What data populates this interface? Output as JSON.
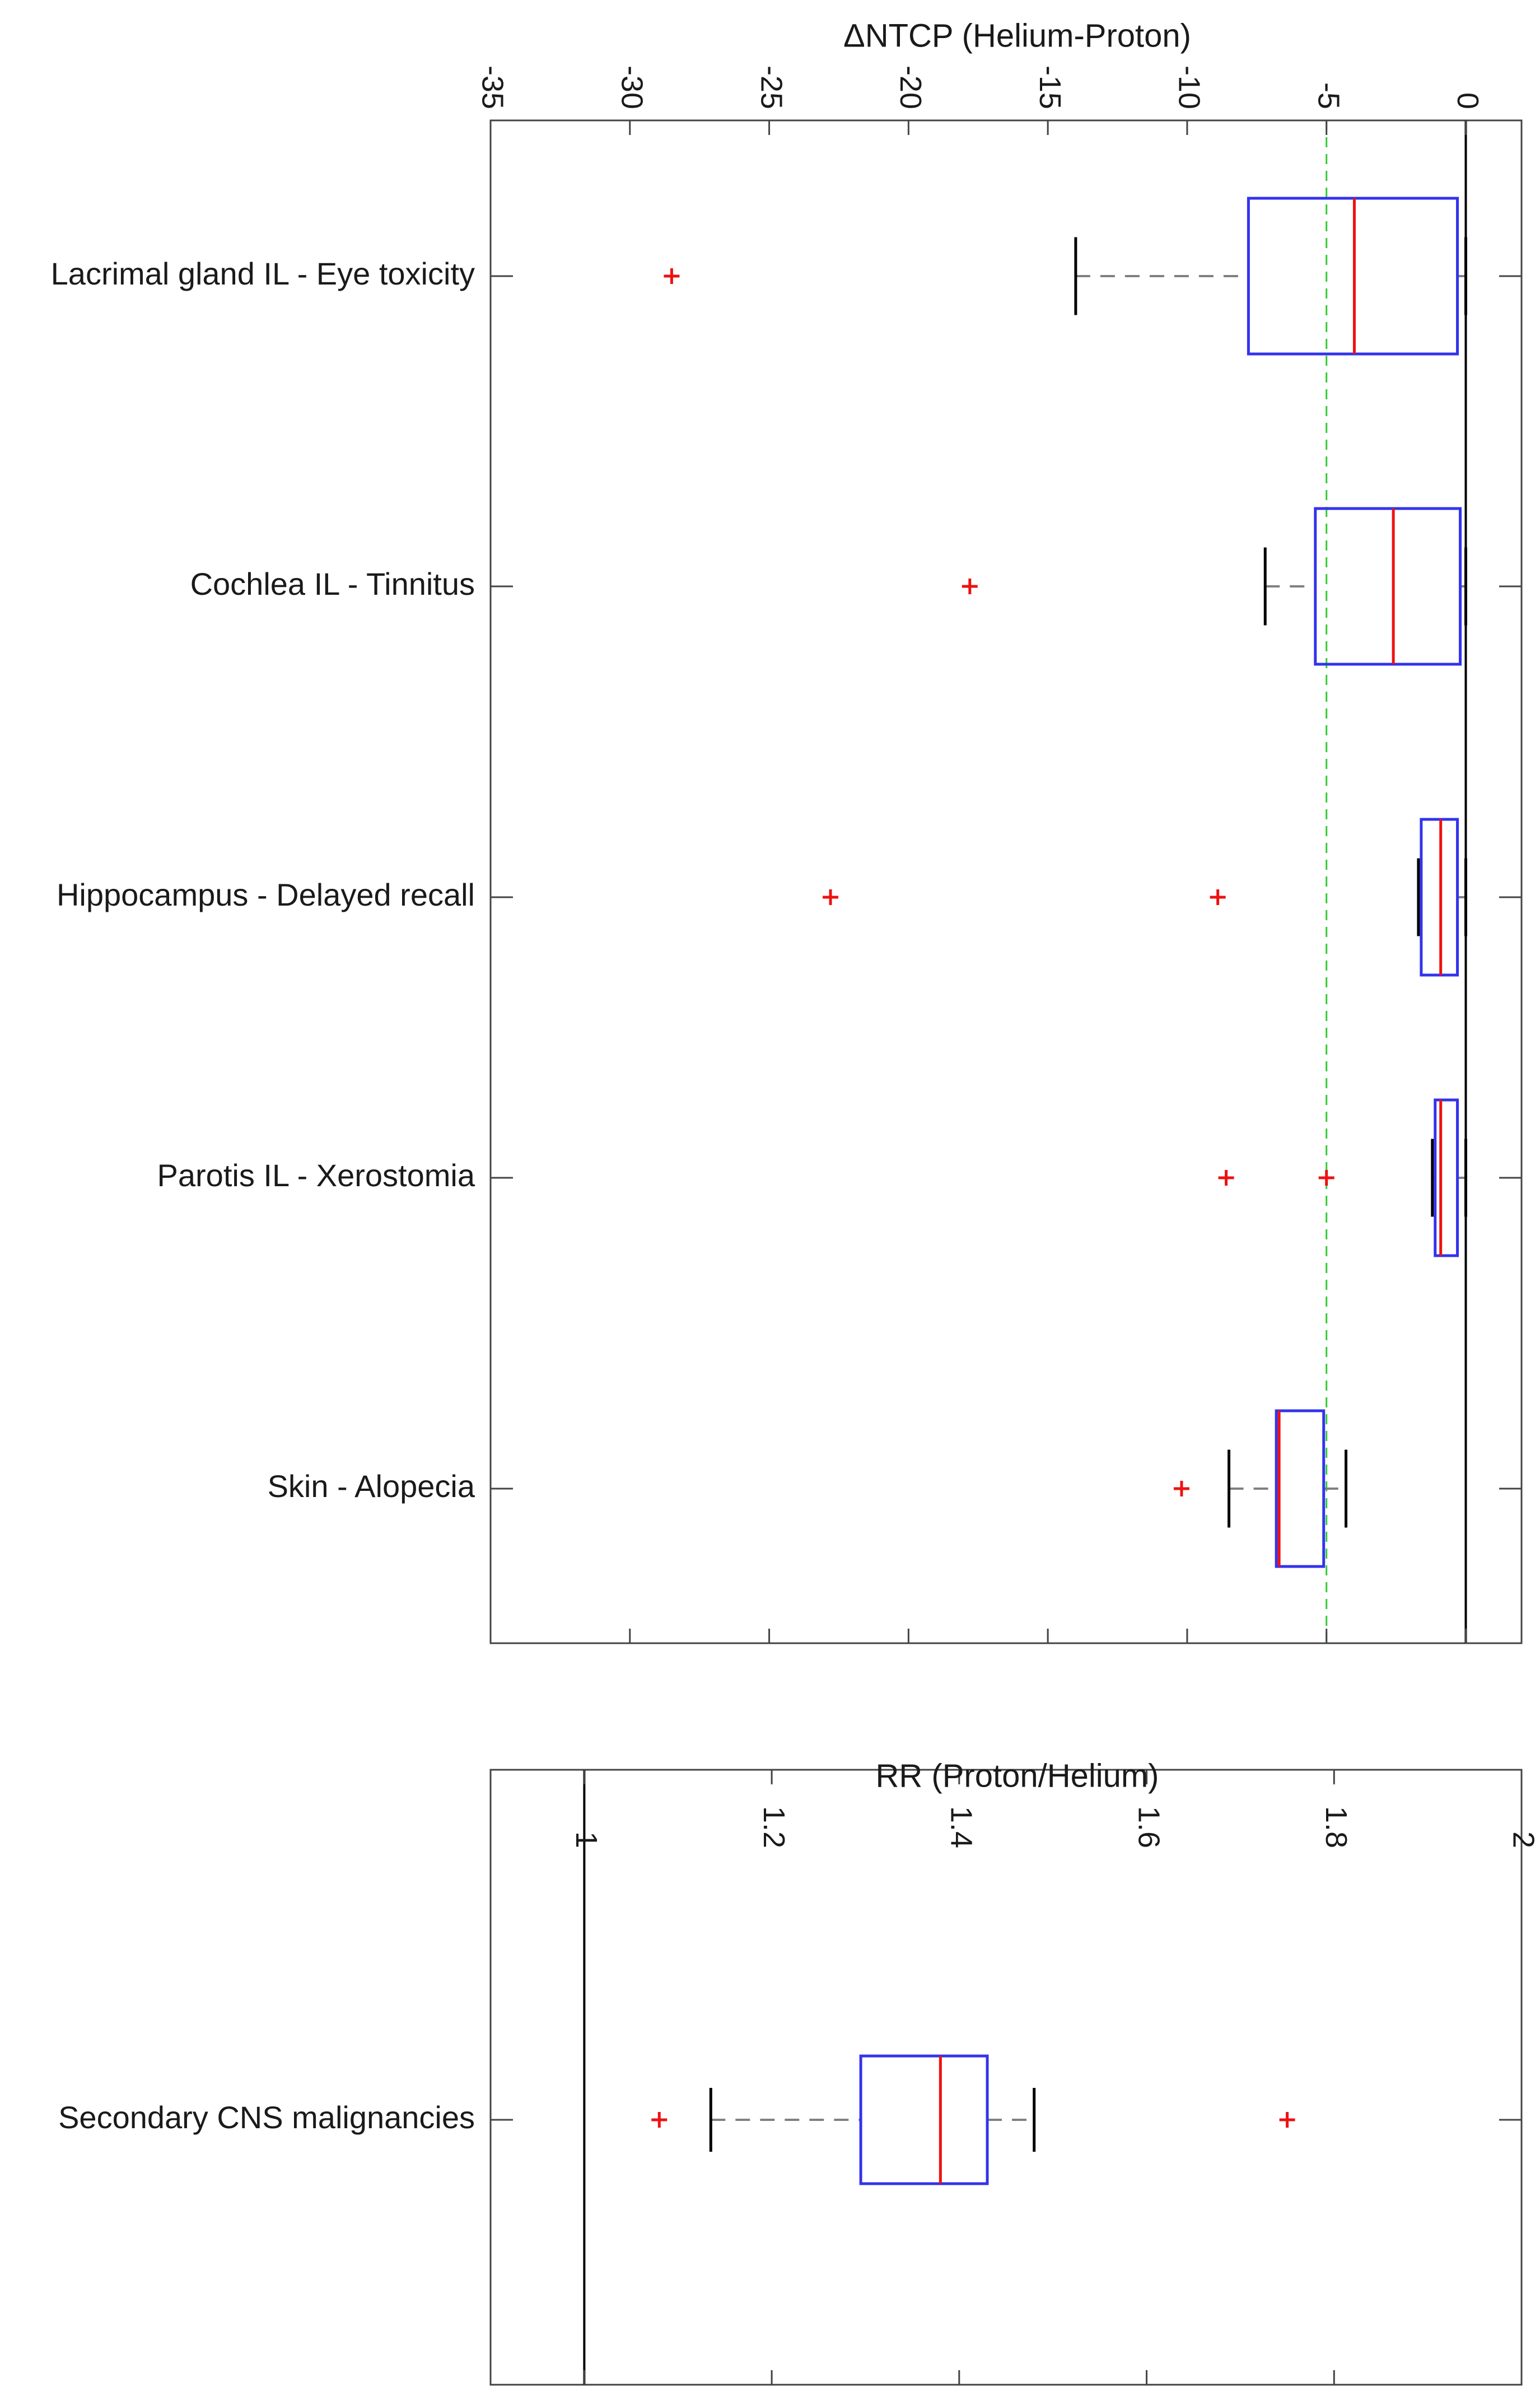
{
  "chart_data": [
    {
      "type": "box",
      "orientation": "horizontal",
      "xlabel": "ΔNTCP (Helium-Proton)",
      "xlim": [
        -35,
        2
      ],
      "xticks": [
        -35,
        -30,
        -25,
        -20,
        -15,
        -10,
        -5,
        0
      ],
      "xtick_labels": [
        "-35",
        "-30",
        "-25",
        "-20",
        "-15",
        "-10",
        "-5",
        "0"
      ],
      "tick_label_rotation": "90 degrees clockwise",
      "axis_position": "top",
      "reference_lines": [
        {
          "value": 0,
          "style": "solid",
          "color": "#000000"
        },
        {
          "value": -5,
          "style": "dashed",
          "color": "#33cc33"
        }
      ],
      "colors": {
        "box": "#3333ee",
        "median": "#ee1111",
        "outlier": "#ee1111",
        "whisker": "#808080",
        "cap": "#000000"
      },
      "categories": [
        "Lacrimal gland IL - Eye toxicity",
        "Cochlea IL - Tinnitus",
        "Hippocampus - Delayed recall",
        "Parotis IL - Xerostomia",
        "Skin -  Alopecia"
      ],
      "boxes": [
        {
          "whisker_low": -14.0,
          "q1": -7.8,
          "median": -4.0,
          "q3": -0.3,
          "whisker_high": 0.0,
          "outliers": [
            -28.5
          ]
        },
        {
          "whisker_low": -7.2,
          "q1": -5.4,
          "median": -2.6,
          "q3": -0.2,
          "whisker_high": 0.0,
          "outliers": [
            -17.8
          ]
        },
        {
          "whisker_low": -1.7,
          "q1": -1.6,
          "median": -0.9,
          "q3": -0.3,
          "whisker_high": 0.0,
          "outliers": [
            -22.8,
            -8.9
          ]
        },
        {
          "whisker_low": -1.2,
          "q1": -1.1,
          "median": -0.9,
          "q3": -0.3,
          "whisker_high": 0.0,
          "outliers": [
            -8.6,
            -5.0
          ]
        },
        {
          "whisker_low": -8.5,
          "q1": -6.8,
          "median": -6.7,
          "q3": -5.1,
          "whisker_high": -4.3,
          "outliers": [
            -10.2
          ]
        }
      ]
    },
    {
      "type": "box",
      "orientation": "horizontal",
      "xlabel": "RR (Proton/Helium)",
      "xlim": [
        0.9,
        2.0
      ],
      "xticks": [
        1,
        1.2,
        1.4,
        1.6,
        1.8,
        2
      ],
      "xtick_labels": [
        "1",
        "1.2",
        "1.4",
        "1.6",
        "1.8",
        "2"
      ],
      "tick_label_rotation": "90 degrees clockwise",
      "axis_position": "top",
      "reference_lines": [
        {
          "value": 1,
          "style": "solid",
          "color": "#000000"
        }
      ],
      "colors": {
        "box": "#3333ee",
        "median": "#ee1111",
        "outlier": "#ee1111",
        "whisker": "#808080",
        "cap": "#000000"
      },
      "categories": [
        "Secondary CNS malignancies"
      ],
      "boxes": [
        {
          "whisker_low": 1.135,
          "q1": 1.295,
          "median": 1.38,
          "q3": 1.43,
          "whisker_high": 1.48,
          "outliers": [
            1.08,
            1.75
          ]
        }
      ]
    }
  ]
}
